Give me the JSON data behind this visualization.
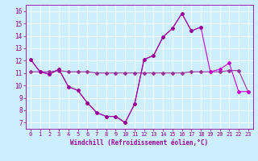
{
  "x": [
    0,
    1,
    2,
    3,
    4,
    5,
    6,
    7,
    8,
    9,
    10,
    11,
    12,
    13,
    14,
    15,
    16,
    17,
    18,
    19,
    20,
    21,
    22,
    23
  ],
  "line1": [
    12.1,
    11.1,
    10.9,
    11.3,
    9.9,
    9.6,
    8.6,
    7.8,
    7.5,
    7.5,
    7.0,
    8.5,
    12.1,
    12.4,
    13.9,
    14.6,
    15.8,
    14.4,
    14.7,
    null,
    null,
    null,
    null,
    null
  ],
  "line2": [
    12.1,
    11.1,
    10.9,
    11.3,
    9.9,
    9.6,
    8.6,
    7.8,
    7.5,
    7.5,
    7.0,
    8.5,
    12.1,
    12.4,
    13.9,
    14.6,
    15.8,
    14.4,
    14.7,
    11.1,
    11.3,
    11.8,
    9.5,
    9.5
  ],
  "line3": [
    11.1,
    11.1,
    11.1,
    11.2,
    11.1,
    11.1,
    11.1,
    11.0,
    11.0,
    11.0,
    11.0,
    11.0,
    11.0,
    11.0,
    11.0,
    11.0,
    11.0,
    11.1,
    11.1,
    11.1,
    11.1,
    11.2,
    11.2,
    9.5
  ],
  "line_color1": "#990099",
  "line_color2": "#cc00cc",
  "line_color3": "#993399",
  "bg_color": "#cceeff",
  "grid_color": "#ffffff",
  "xlabel": "Windchill (Refroidissement éolien,°C)",
  "ylim": [
    6.5,
    16.5
  ],
  "xlim": [
    -0.5,
    23.5
  ],
  "yticks": [
    7,
    8,
    9,
    10,
    11,
    12,
    13,
    14,
    15,
    16
  ],
  "xticks": [
    0,
    1,
    2,
    3,
    4,
    5,
    6,
    7,
    8,
    9,
    10,
    11,
    12,
    13,
    14,
    15,
    16,
    17,
    18,
    19,
    20,
    21,
    22,
    23
  ],
  "tick_fontsize": 5.0,
  "xlabel_fontsize": 5.5,
  "marker_size": 2.0,
  "line_width": 0.8
}
